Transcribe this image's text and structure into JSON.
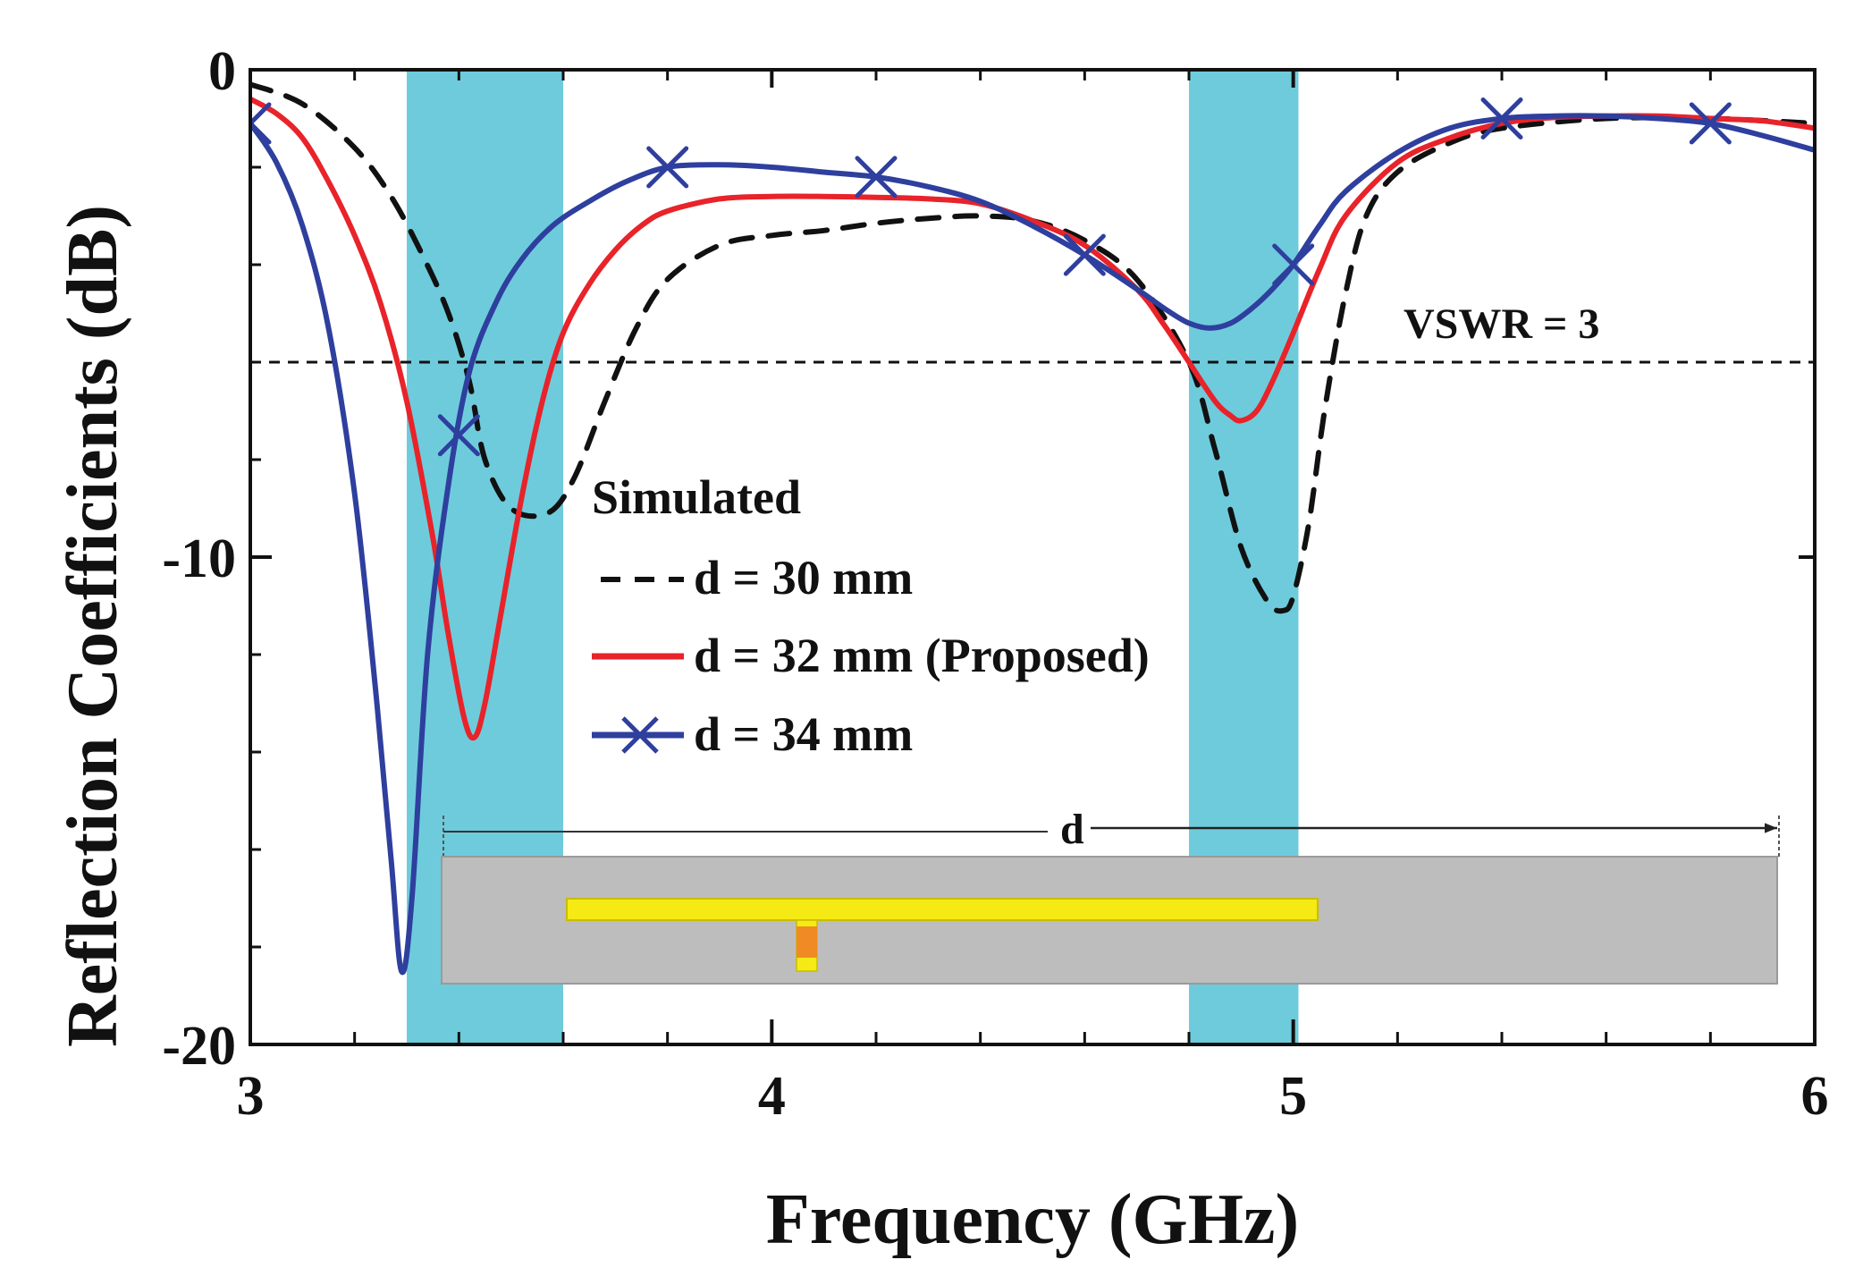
{
  "chart_data": {
    "type": "line",
    "title": "",
    "xlabel": "Frequency (GHz)",
    "ylabel": "Reflection Coefficients (dB)",
    "xlim": [
      3,
      6
    ],
    "ylim": [
      -20,
      0
    ],
    "x_ticks": [
      3,
      4,
      5,
      6
    ],
    "x_tick_labels": [
      "3",
      "4",
      "5",
      "6"
    ],
    "y_ticks": [
      0,
      -10,
      -20
    ],
    "y_tick_labels": [
      "0",
      "-10",
      "-20"
    ],
    "grid": false,
    "legend_title": "Simulated",
    "legend_position": "center",
    "bands": [
      {
        "name": "band-1",
        "x_start": 3.3,
        "x_end": 3.6,
        "color": "#6ecbdc"
      },
      {
        "name": "band-2",
        "x_start": 4.8,
        "x_end": 5.01,
        "color": "#6ecbdc"
      }
    ],
    "reference_line": {
      "label": "VSWR = 3",
      "y": -6
    },
    "series": [
      {
        "name": "d = 30 mm",
        "color": "#111111",
        "style": "dashed",
        "marker": "none",
        "x": [
          3.0,
          3.1,
          3.2,
          3.27,
          3.33,
          3.38,
          3.42,
          3.45,
          3.5,
          3.57,
          3.62,
          3.68,
          3.74,
          3.8,
          3.9,
          4.0,
          4.1,
          4.2,
          4.3,
          4.4,
          4.5,
          4.6,
          4.7,
          4.8,
          4.85,
          4.9,
          4.95,
          4.98,
          5.0,
          5.03,
          5.06,
          5.1,
          5.14,
          5.2,
          5.3,
          5.4,
          5.6,
          5.8,
          6.0
        ],
        "y": [
          -0.3,
          -0.7,
          -1.6,
          -2.6,
          -3.8,
          -5.0,
          -6.4,
          -8.0,
          -9.0,
          -9.1,
          -8.4,
          -6.8,
          -5.3,
          -4.3,
          -3.6,
          -3.4,
          -3.3,
          -3.15,
          -3.05,
          -3.0,
          -3.1,
          -3.5,
          -4.3,
          -6.0,
          -7.8,
          -9.8,
          -10.9,
          -11.1,
          -10.8,
          -9.3,
          -7.0,
          -4.6,
          -3.0,
          -2.1,
          -1.5,
          -1.2,
          -1.0,
          -1.0,
          -1.1
        ]
      },
      {
        "name": "d = 32 mm (Proposed)",
        "color": "#e8232a",
        "style": "solid",
        "marker": "none",
        "x": [
          3.0,
          3.05,
          3.1,
          3.15,
          3.2,
          3.25,
          3.3,
          3.35,
          3.38,
          3.41,
          3.43,
          3.45,
          3.48,
          3.52,
          3.56,
          3.6,
          3.65,
          3.7,
          3.75,
          3.8,
          3.9,
          4.0,
          4.1,
          4.2,
          4.3,
          4.4,
          4.5,
          4.6,
          4.7,
          4.75,
          4.8,
          4.85,
          4.88,
          4.9,
          4.93,
          4.96,
          5.0,
          5.05,
          5.1,
          5.2,
          5.3,
          5.4,
          5.5,
          5.6,
          5.7,
          5.8,
          5.9,
          6.0
        ],
        "y": [
          -0.6,
          -0.9,
          -1.4,
          -2.3,
          -3.4,
          -4.8,
          -6.8,
          -9.6,
          -11.6,
          -13.3,
          -13.7,
          -13.0,
          -11.2,
          -8.8,
          -6.8,
          -5.4,
          -4.4,
          -3.7,
          -3.2,
          -2.9,
          -2.65,
          -2.6,
          -2.6,
          -2.62,
          -2.65,
          -2.75,
          -3.1,
          -3.6,
          -4.5,
          -5.2,
          -6.0,
          -6.8,
          -7.1,
          -7.2,
          -7.0,
          -6.4,
          -5.4,
          -4.1,
          -3.0,
          -1.9,
          -1.4,
          -1.1,
          -0.98,
          -0.95,
          -0.95,
          -1.0,
          -1.05,
          -1.2
        ]
      },
      {
        "name": "d = 34 mm",
        "color": "#2e3f9e",
        "style": "solid",
        "marker": "x",
        "x": [
          3.0,
          3.05,
          3.1,
          3.15,
          3.2,
          3.24,
          3.27,
          3.29,
          3.31,
          3.34,
          3.38,
          3.42,
          3.47,
          3.52,
          3.58,
          3.65,
          3.72,
          3.8,
          3.9,
          4.0,
          4.1,
          4.2,
          4.3,
          4.4,
          4.5,
          4.6,
          4.7,
          4.76,
          4.8,
          4.84,
          4.88,
          4.92,
          4.96,
          5.0,
          5.05,
          5.1,
          5.2,
          5.3,
          5.4,
          5.5,
          5.6,
          5.7,
          5.8,
          5.9,
          6.0
        ],
        "y": [
          -1.1,
          -1.9,
          -3.2,
          -5.3,
          -8.7,
          -12.7,
          -16.2,
          -18.5,
          -17.0,
          -12.0,
          -8.5,
          -6.2,
          -4.8,
          -3.9,
          -3.2,
          -2.7,
          -2.3,
          -2.0,
          -1.95,
          -2.0,
          -2.1,
          -2.2,
          -2.4,
          -2.7,
          -3.2,
          -3.8,
          -4.5,
          -4.95,
          -5.2,
          -5.3,
          -5.2,
          -4.9,
          -4.5,
          -4.0,
          -3.2,
          -2.5,
          -1.7,
          -1.2,
          -1.0,
          -0.95,
          -0.95,
          -1.0,
          -1.1,
          -1.35,
          -1.65
        ],
        "marker_points": [
          [
            3.0,
            -1.1
          ],
          [
            3.4,
            -7.5
          ],
          [
            3.8,
            -2.0
          ],
          [
            4.2,
            -2.2
          ],
          [
            4.6,
            -3.8
          ],
          [
            5.0,
            -4.0
          ],
          [
            5.4,
            -1.0
          ],
          [
            5.8,
            -1.1
          ]
        ]
      }
    ],
    "inset": {
      "label": "d",
      "board_color": "#bdbdbd",
      "strip_color": "#f5ea14",
      "feed_color": "#f08a24"
    }
  }
}
